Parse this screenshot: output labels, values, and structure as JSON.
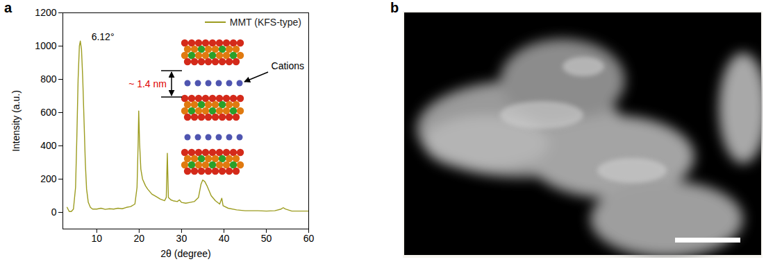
{
  "chart_data": {
    "type": "line",
    "panel_label": "a",
    "x_label": "2θ (degree)",
    "y_label": "Intensity (a.u.)",
    "xlim": [
      2,
      60
    ],
    "ylim": [
      -100,
      1200
    ],
    "xticks": [
      10,
      20,
      30,
      40,
      50,
      60
    ],
    "yticks": [
      0,
      200,
      400,
      600,
      800,
      1000,
      1200
    ],
    "grid": false,
    "legend": "top-right",
    "series": [
      {
        "name": "MMT (KFS-type)",
        "color": "#9c9c1f",
        "x": [
          3.0,
          3.5,
          4.0,
          4.5,
          5.0,
          5.3,
          5.6,
          5.9,
          6.12,
          6.4,
          6.7,
          7.0,
          7.3,
          7.6,
          8.0,
          8.5,
          9,
          10,
          11,
          12,
          13,
          14,
          15,
          16,
          17,
          18,
          19,
          19.5,
          19.75,
          19.9,
          20.1,
          20.4,
          20.8,
          21.5,
          22,
          23,
          24,
          25,
          26,
          26.4,
          26.65,
          26.9,
          27.5,
          28,
          29,
          29.5,
          30,
          31,
          32,
          33,
          34,
          34.6,
          35.0,
          35.5,
          36,
          36.5,
          37,
          38,
          39,
          39.5,
          39.8,
          41,
          43,
          45,
          48,
          50,
          52,
          53.5,
          54,
          54.5,
          56,
          58,
          60
        ],
        "values": [
          30,
          5,
          5,
          20,
          150,
          450,
          800,
          1000,
          1030,
          980,
          800,
          550,
          300,
          140,
          60,
          30,
          20,
          20,
          25,
          18,
          22,
          20,
          25,
          22,
          30,
          35,
          50,
          150,
          400,
          610,
          420,
          260,
          200,
          160,
          140,
          110,
          95,
          80,
          70,
          90,
          355,
          90,
          75,
          70,
          65,
          75,
          60,
          55,
          60,
          65,
          90,
          170,
          195,
          185,
          160,
          130,
          100,
          70,
          50,
          85,
          40,
          25,
          15,
          10,
          10,
          8,
          10,
          20,
          28,
          20,
          8,
          8,
          8
        ]
      }
    ],
    "annotations": [
      {
        "text": "6.12°",
        "x": 6.12,
        "y": 1030
      },
      {
        "text": "~ 1.4 nm"
      },
      {
        "text": "Cations"
      }
    ]
  },
  "image_panel": {
    "panel_label": "b",
    "type": "image"
  }
}
